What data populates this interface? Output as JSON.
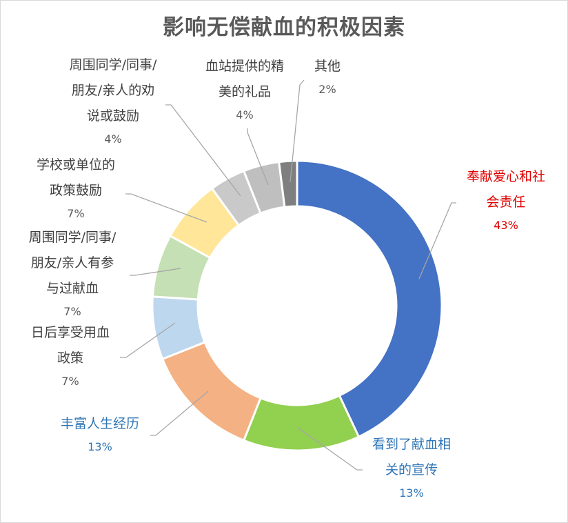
{
  "chart_data": {
    "type": "pie",
    "variant": "doughnut",
    "title": "影响无偿献血的积极因素",
    "slices": [
      {
        "label_lines": [
          "奉献爱心和社",
          "会责任"
        ],
        "percent_label": "43%",
        "value": 43,
        "color": "#4472C4",
        "label_color": "#E00000"
      },
      {
        "label_lines": [
          "看到了献血相",
          "关的宣传"
        ],
        "percent_label": "13%",
        "value": 13,
        "color": "#92D050",
        "label_color": "#2E75B6"
      },
      {
        "label_lines": [
          "丰富人生经历"
        ],
        "percent_label": "13%",
        "value": 13,
        "color": "#F4B183",
        "label_color": "#2E75B6"
      },
      {
        "label_lines": [
          "日后享受用血",
          "政策"
        ],
        "percent_label": "7%",
        "value": 7,
        "color": "#BDD7EE",
        "label_color": "#404040"
      },
      {
        "label_lines": [
          "周围同学/同事/",
          "朋友/亲人有参",
          "与过献血"
        ],
        "percent_label": "7%",
        "value": 7,
        "color": "#C5E0B4",
        "label_color": "#404040"
      },
      {
        "label_lines": [
          "学校或单位的",
          "政策鼓励"
        ],
        "percent_label": "7%",
        "value": 7,
        "color": "#FFE699",
        "label_color": "#404040"
      },
      {
        "label_lines": [
          "周围同学/同事/",
          "朋友/亲人的劝",
          "说或鼓励"
        ],
        "percent_label": "4%",
        "value": 4,
        "color": "#C9C9C9",
        "label_color": "#404040"
      },
      {
        "label_lines": [
          "血站提供的精",
          "美的礼品"
        ],
        "percent_label": "4%",
        "value": 4,
        "color": "#BFBFBF",
        "label_color": "#404040"
      },
      {
        "label_lines": [
          "其他"
        ],
        "percent_label": "2%",
        "value": 2,
        "color": "#7F7F7F",
        "label_color": "#404040"
      }
    ]
  }
}
